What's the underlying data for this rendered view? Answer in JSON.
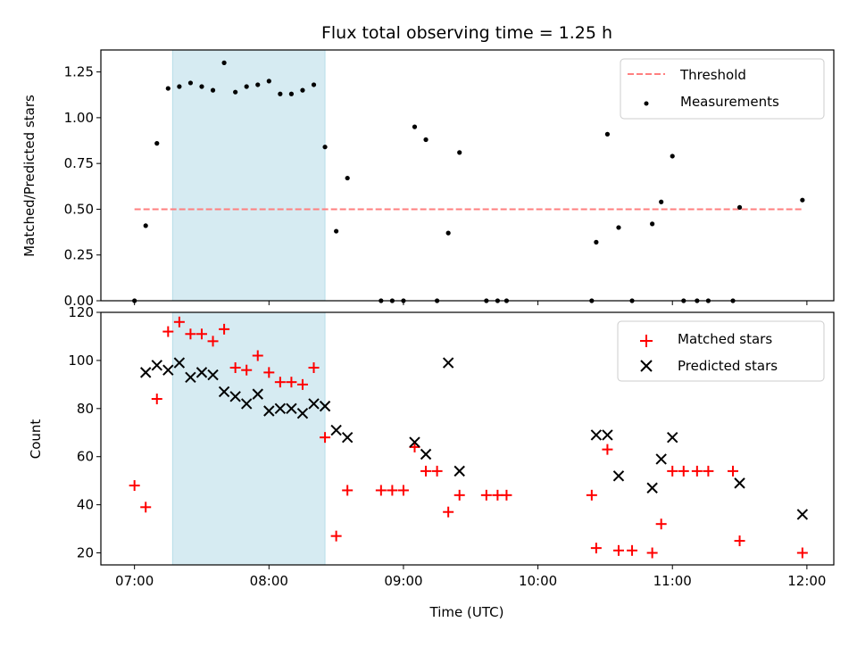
{
  "chart_data": [
    {
      "type": "scatter",
      "title": "Flux total observing time = 1.25 h",
      "xlabel": "",
      "ylabel": "Matched/Predicted stars",
      "xlim": [
        "06:45",
        "12:12"
      ],
      "ylim": [
        0,
        1.37
      ],
      "yticks": [
        "0.00",
        "0.25",
        "0.50",
        "0.75",
        "1.00",
        "1.25"
      ],
      "highlight_span": {
        "start": "07:17",
        "end": "08:25",
        "color": "#add8e6"
      },
      "legend_position": "upper right",
      "series": [
        {
          "name": "Threshold",
          "kind": "dashed-line",
          "color": "#ff7f7f",
          "points": [
            [
              "07:00",
              0.5
            ],
            [
              "11:58",
              0.5
            ]
          ]
        },
        {
          "name": "Measurements",
          "kind": "dot",
          "color": "#000000",
          "points": [
            [
              "07:00",
              0.0
            ],
            [
              "07:05",
              0.41
            ],
            [
              "07:10",
              0.86
            ],
            [
              "07:15",
              1.16
            ],
            [
              "07:20",
              1.17
            ],
            [
              "07:25",
              1.19
            ],
            [
              "07:30",
              1.17
            ],
            [
              "07:35",
              1.15
            ],
            [
              "07:40",
              1.3
            ],
            [
              "07:45",
              1.14
            ],
            [
              "07:50",
              1.17
            ],
            [
              "07:55",
              1.18
            ],
            [
              "08:00",
              1.2
            ],
            [
              "08:05",
              1.13
            ],
            [
              "08:10",
              1.13
            ],
            [
              "08:15",
              1.15
            ],
            [
              "08:20",
              1.18
            ],
            [
              "08:25",
              0.84
            ],
            [
              "08:30",
              0.38
            ],
            [
              "08:35",
              0.67
            ],
            [
              "08:50",
              0.0
            ],
            [
              "08:55",
              0.0
            ],
            [
              "09:00",
              0.0
            ],
            [
              "09:05",
              0.95
            ],
            [
              "09:10",
              0.88
            ],
            [
              "09:15",
              0.0
            ],
            [
              "09:20",
              0.37
            ],
            [
              "09:25",
              0.81
            ],
            [
              "09:37",
              0.0
            ],
            [
              "09:42",
              0.0
            ],
            [
              "09:46",
              0.0
            ],
            [
              "10:24",
              0.0
            ],
            [
              "10:26",
              0.32
            ],
            [
              "10:31",
              0.91
            ],
            [
              "10:36",
              0.4
            ],
            [
              "10:42",
              0.0
            ],
            [
              "10:51",
              0.42
            ],
            [
              "10:55",
              0.54
            ],
            [
              "11:00",
              0.79
            ],
            [
              "11:05",
              0.0
            ],
            [
              "11:11",
              0.0
            ],
            [
              "11:16",
              0.0
            ],
            [
              "11:27",
              0.0
            ],
            [
              "11:30",
              0.51
            ],
            [
              "11:58",
              0.55
            ]
          ]
        }
      ]
    },
    {
      "type": "scatter",
      "title": "",
      "xlabel": "Time (UTC)",
      "ylabel": "Count",
      "xlim": [
        "06:45",
        "12:12"
      ],
      "ylim": [
        15,
        120
      ],
      "xticks": [
        "07:00",
        "08:00",
        "09:00",
        "10:00",
        "11:00",
        "12:00"
      ],
      "yticks": [
        "20",
        "40",
        "60",
        "80",
        "100",
        "120"
      ],
      "highlight_span": {
        "start": "07:17",
        "end": "08:25",
        "color": "#add8e6"
      },
      "legend_position": "upper right",
      "series": [
        {
          "name": "Matched stars",
          "kind": "plus",
          "color": "#ff0000",
          "points": [
            [
              "07:00",
              48
            ],
            [
              "07:05",
              39
            ],
            [
              "07:10",
              84
            ],
            [
              "07:15",
              112
            ],
            [
              "07:20",
              116
            ],
            [
              "07:25",
              111
            ],
            [
              "07:30",
              111
            ],
            [
              "07:35",
              108
            ],
            [
              "07:40",
              113
            ],
            [
              "07:45",
              97
            ],
            [
              "07:50",
              96
            ],
            [
              "07:55",
              102
            ],
            [
              "08:00",
              95
            ],
            [
              "08:05",
              91
            ],
            [
              "08:10",
              91
            ],
            [
              "08:15",
              90
            ],
            [
              "08:20",
              97
            ],
            [
              "08:25",
              68
            ],
            [
              "08:30",
              27
            ],
            [
              "08:35",
              46
            ],
            [
              "08:50",
              46
            ],
            [
              "08:55",
              46
            ],
            [
              "09:00",
              46
            ],
            [
              "09:05",
              64
            ],
            [
              "09:10",
              54
            ],
            [
              "09:15",
              54
            ],
            [
              "09:20",
              37
            ],
            [
              "09:25",
              44
            ],
            [
              "09:37",
              44
            ],
            [
              "09:42",
              44
            ],
            [
              "09:46",
              44
            ],
            [
              "10:24",
              44
            ],
            [
              "10:26",
              22
            ],
            [
              "10:31",
              63
            ],
            [
              "10:36",
              21
            ],
            [
              "10:42",
              21
            ],
            [
              "10:51",
              20
            ],
            [
              "10:55",
              32
            ],
            [
              "11:00",
              54
            ],
            [
              "11:05",
              54
            ],
            [
              "11:11",
              54
            ],
            [
              "11:16",
              54
            ],
            [
              "11:27",
              54
            ],
            [
              "11:30",
              25
            ],
            [
              "11:58",
              20
            ]
          ]
        },
        {
          "name": "Predicted stars",
          "kind": "cross",
          "color": "#000000",
          "points": [
            [
              "07:05",
              95
            ],
            [
              "07:10",
              98
            ],
            [
              "07:15",
              96
            ],
            [
              "07:20",
              99
            ],
            [
              "07:25",
              93
            ],
            [
              "07:30",
              95
            ],
            [
              "07:35",
              94
            ],
            [
              "07:40",
              87
            ],
            [
              "07:45",
              85
            ],
            [
              "07:50",
              82
            ],
            [
              "07:55",
              86
            ],
            [
              "08:00",
              79
            ],
            [
              "08:05",
              80
            ],
            [
              "08:10",
              80
            ],
            [
              "08:15",
              78
            ],
            [
              "08:20",
              82
            ],
            [
              "08:25",
              81
            ],
            [
              "08:30",
              71
            ],
            [
              "08:35",
              68
            ],
            [
              "09:05",
              66
            ],
            [
              "09:10",
              61
            ],
            [
              "09:20",
              99
            ],
            [
              "09:25",
              54
            ],
            [
              "10:26",
              69
            ],
            [
              "10:31",
              69
            ],
            [
              "10:36",
              52
            ],
            [
              "10:51",
              47
            ],
            [
              "10:55",
              59
            ],
            [
              "11:00",
              68
            ],
            [
              "11:30",
              49
            ],
            [
              "11:58",
              36
            ]
          ]
        }
      ]
    }
  ]
}
